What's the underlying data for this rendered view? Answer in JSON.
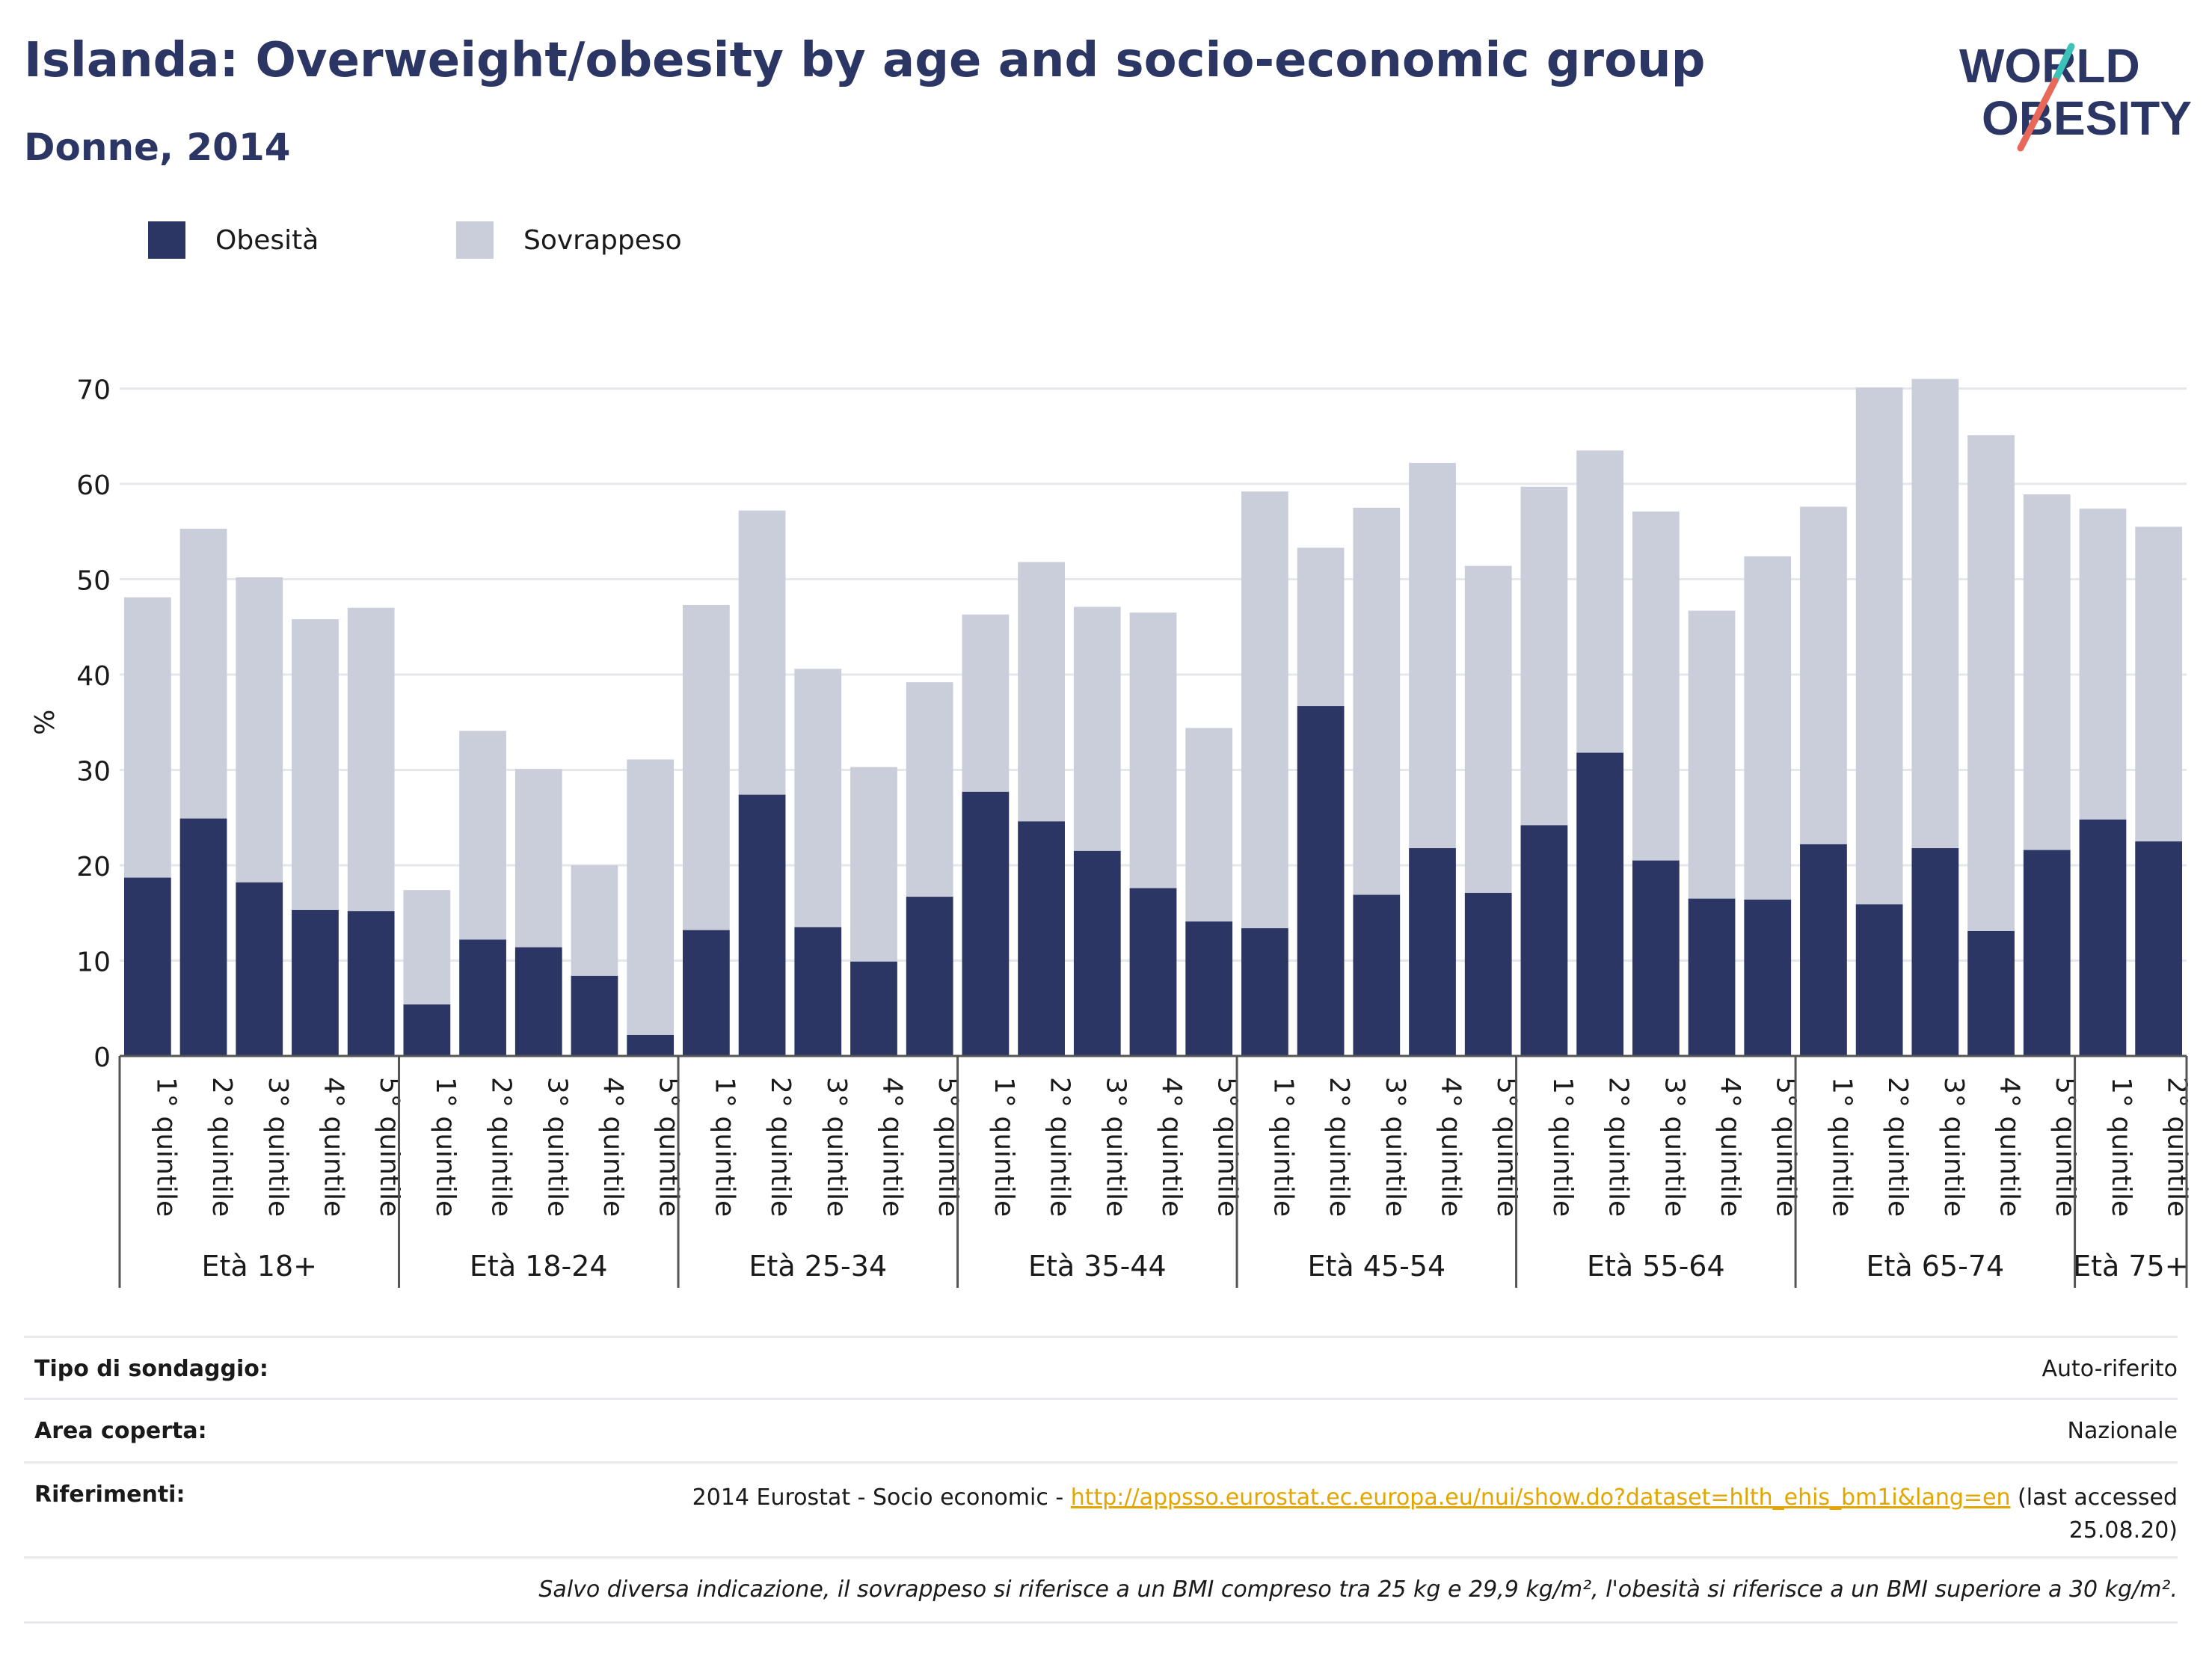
{
  "title": "Islanda: Overweight/obesity by age and socio-economic group",
  "subtitle": "Donne, 2014",
  "logo": {
    "line1": "WORLD",
    "line2": "OBESITY"
  },
  "legend": [
    {
      "label": "Obesità",
      "color": "#2b3664"
    },
    {
      "label": "Sovrappeso",
      "color": "#cacdda"
    }
  ],
  "chart_data": {
    "type": "bar",
    "stacked": true,
    "ylabel": "%",
    "ylim": [
      0,
      72
    ],
    "yticks": [
      0,
      10,
      20,
      30,
      40,
      50,
      60,
      70
    ],
    "grid": true,
    "legend_position": "top-left",
    "groups": [
      {
        "label": "Età 18+",
        "categories": [
          "1° quintile",
          "2° quintile",
          "3° quintile",
          "4° quintile",
          "5° quintile"
        ]
      },
      {
        "label": "Età 18-24",
        "categories": [
          "1° quintile",
          "2° quintile",
          "3° quintile",
          "4° quintile",
          "5° quintile"
        ]
      },
      {
        "label": "Età 25-34",
        "categories": [
          "1° quintile",
          "2° quintile",
          "3° quintile",
          "4° quintile",
          "5° quintile"
        ]
      },
      {
        "label": "Età 35-44",
        "categories": [
          "1° quintile",
          "2° quintile",
          "3° quintile",
          "4° quintile",
          "5° quintile"
        ]
      },
      {
        "label": "Età 45-54",
        "categories": [
          "1° quintile",
          "2° quintile",
          "3° quintile",
          "4° quintile",
          "5° quintile"
        ]
      },
      {
        "label": "Età 55-64",
        "categories": [
          "1° quintile",
          "2° quintile",
          "3° quintile",
          "4° quintile",
          "5° quintile"
        ]
      },
      {
        "label": "Età 65-74",
        "categories": [
          "1° quintile",
          "2° quintile",
          "3° quintile",
          "4° quintile",
          "5° quintile"
        ]
      },
      {
        "label": "Età 75+",
        "categories": [
          "1° quintile",
          "2° quintile"
        ]
      }
    ],
    "series": [
      {
        "name": "Obesità",
        "color": "#2b3664",
        "values": [
          18.7,
          24.9,
          18.2,
          15.3,
          15.2,
          5.4,
          12.2,
          11.4,
          8.4,
          2.2,
          13.2,
          27.4,
          13.5,
          9.9,
          16.7,
          27.7,
          24.6,
          21.5,
          17.6,
          14.1,
          13.4,
          36.7,
          16.9,
          21.8,
          17.1,
          24.2,
          31.8,
          20.5,
          16.5,
          16.4,
          22.2,
          15.9,
          21.8,
          13.1,
          21.6,
          24.8,
          22.5
        ]
      },
      {
        "name": "Sovrappeso",
        "color": "#cacdda",
        "values": [
          29.4,
          30.4,
          32.0,
          30.5,
          31.8,
          12.0,
          21.9,
          18.7,
          11.6,
          28.9,
          34.1,
          29.8,
          27.1,
          20.4,
          22.5,
          18.6,
          27.2,
          25.6,
          28.9,
          20.3,
          45.8,
          16.6,
          40.6,
          40.4,
          34.3,
          35.5,
          31.7,
          36.6,
          30.2,
          36.0,
          35.4,
          54.2,
          49.2,
          52.0,
          37.3,
          32.6,
          33.0
        ]
      }
    ]
  },
  "info": {
    "survey_label": "Tipo di sondaggio:",
    "survey_value": "Auto-riferito",
    "area_label": "Area coperta:",
    "area_value": "Nazionale",
    "refs_label": "Riferimenti:",
    "refs_prefix": "2014 Eurostat - Socio economic - ",
    "refs_link": "http://appsso.eurostat.ec.europa.eu/nui/show.do?dataset=hlth_ehis_bm1i&lang=en",
    "refs_suffix_1": " (last accessed",
    "refs_suffix_2": "25.08.20)",
    "note": "Salvo diversa indicazione, il sovrappeso si riferisce a un BMI compreso tra 25 kg e 29,9 kg/m², l'obesità si riferisce a un BMI superiore a 30 kg/m²."
  }
}
